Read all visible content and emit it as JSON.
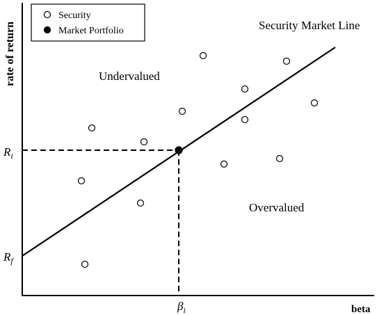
{
  "chart_data": {
    "type": "scatter",
    "xlabel": "beta",
    "ylabel": "rate of return",
    "xlim": [
      0,
      10
    ],
    "ylim": [
      0,
      10
    ],
    "grid": false,
    "legend": {
      "placement": "top-left",
      "entries": [
        {
          "label": "Security",
          "marker": "open-circle"
        },
        {
          "label": "Market Portfolio",
          "marker": "filled-circle"
        }
      ]
    },
    "series": [
      {
        "name": "Security",
        "marker": "open-circle",
        "points": [
          {
            "x": 1.7,
            "y": 4.0
          },
          {
            "x": 2.0,
            "y": 5.9
          },
          {
            "x": 1.8,
            "y": 1.0
          },
          {
            "x": 3.5,
            "y": 5.4
          },
          {
            "x": 3.4,
            "y": 3.2
          },
          {
            "x": 4.6,
            "y": 6.5
          },
          {
            "x": 5.2,
            "y": 8.5
          },
          {
            "x": 5.8,
            "y": 4.6
          },
          {
            "x": 6.4,
            "y": 7.3
          },
          {
            "x": 6.4,
            "y": 6.2
          },
          {
            "x": 7.4,
            "y": 4.8
          },
          {
            "x": 7.6,
            "y": 8.3
          },
          {
            "x": 8.4,
            "y": 6.8
          }
        ]
      },
      {
        "name": "Market Portfolio",
        "marker": "filled-circle",
        "points": [
          {
            "x": 4.5,
            "y": 5.1
          }
        ]
      }
    ],
    "sml": {
      "label": "Security Market Line",
      "points": [
        {
          "x": 0,
          "y": 1.3
        },
        {
          "x": 9.0,
          "y": 8.8
        }
      ]
    },
    "reference": {
      "x": 4.5,
      "y": 5.1,
      "x_tick_label": "β",
      "x_tick_sub": "i",
      "y_tick_label": "R",
      "y_tick_sub": "i",
      "rf_label": "R",
      "rf_sub": "f"
    },
    "annotations": {
      "undervalued": "Undervalued",
      "overvalued": "Overvalued"
    }
  },
  "colors": {
    "axis": "#000000",
    "marker_stroke": "#000000",
    "marker_fill_open": "#ffffff",
    "marker_fill_solid": "#000000",
    "background": "#ffffff"
  }
}
